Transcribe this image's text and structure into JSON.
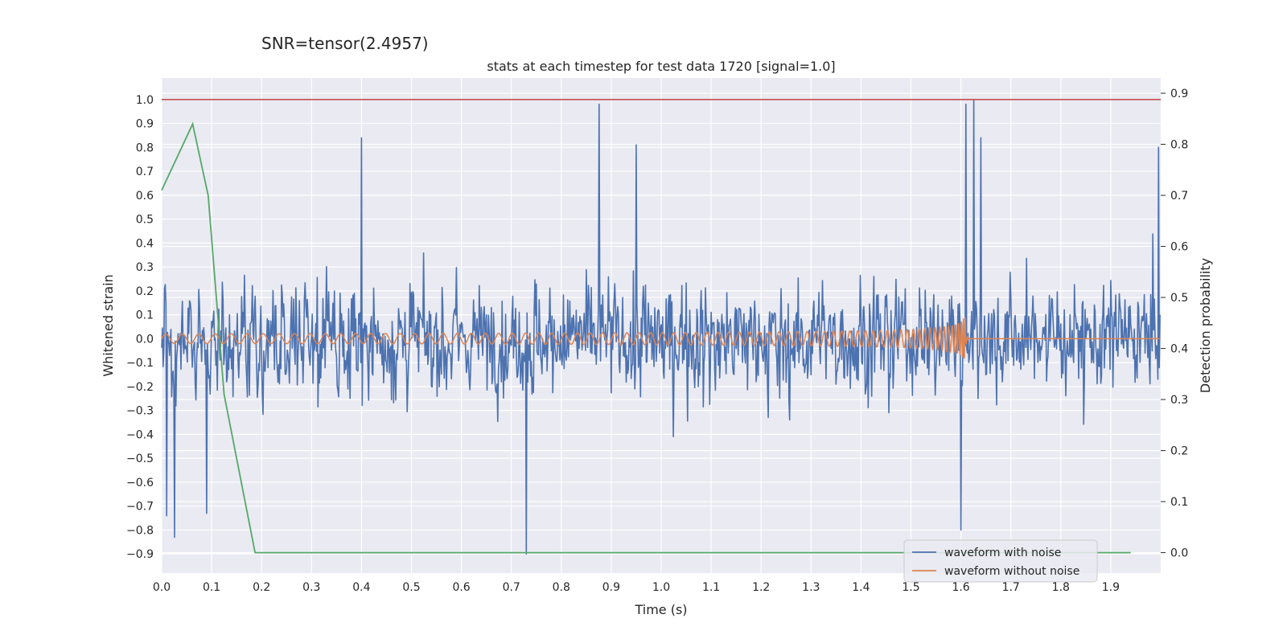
{
  "suptitle": "SNR=tensor(2.4957)",
  "chart_data": {
    "type": "line",
    "title": "stats at each timestep for test data 1720 [signal=1.0]",
    "xlabel": "Time (s)",
    "ylabel_left": "Whitened strain",
    "ylabel_right": "Detection probability",
    "xlim": [
      0.0,
      2.0
    ],
    "ylim_left": [
      -0.98,
      1.09
    ],
    "ylim_right": [
      -0.04,
      0.93
    ],
    "x_ticks": [
      "0.0",
      "0.1",
      "0.2",
      "0.3",
      "0.4",
      "0.5",
      "0.6",
      "0.7",
      "0.8",
      "0.9",
      "1.0",
      "1.1",
      "1.2",
      "1.3",
      "1.4",
      "1.5",
      "1.6",
      "1.7",
      "1.8",
      "1.9"
    ],
    "y_ticks_left": [
      "1.0",
      "0.9",
      "0.8",
      "0.7",
      "0.6",
      "0.5",
      "0.4",
      "0.3",
      "0.2",
      "0.1",
      "0.0",
      "−0.1",
      "−0.2",
      "−0.3",
      "−0.4",
      "−0.5",
      "−0.6",
      "−0.7",
      "−0.8",
      "−0.9"
    ],
    "y_ticks_right": [
      "0.9",
      "0.8",
      "0.7",
      "0.6",
      "0.5",
      "0.4",
      "0.3",
      "0.2",
      "0.1",
      "0.0"
    ],
    "colors": {
      "background": "#eaeaf2",
      "grid": "#ffffff",
      "noise": "#4c72b0",
      "clean": "#dd8452",
      "prob": "#55a868",
      "threshold": "#c44e52"
    },
    "series": [
      {
        "name": "waveform with noise",
        "description_only_in_legend": true,
        "x_range": [
          0.0,
          2.0
        ],
        "amplitude_range": [
          -0.9,
          1.0
        ],
        "spikes": [
          {
            "x": 0.01,
            "y": -0.74
          },
          {
            "x": 0.025,
            "y": -0.83
          },
          {
            "x": 0.09,
            "y": -0.73
          },
          {
            "x": 0.4,
            "y": 0.84
          },
          {
            "x": 0.73,
            "y": -0.9
          },
          {
            "x": 0.875,
            "y": 0.98
          },
          {
            "x": 0.95,
            "y": 0.81
          },
          {
            "x": 1.6,
            "y": -0.8
          },
          {
            "x": 1.61,
            "y": 0.98
          },
          {
            "x": 1.625,
            "y": 1.0
          },
          {
            "x": 1.64,
            "y": 0.84
          },
          {
            "x": 1.995,
            "y": 0.8
          }
        ]
      },
      {
        "name": "waveform without noise",
        "x_range": [
          0.0,
          2.0
        ],
        "merger_time": 1.61,
        "amplitude_start": 0.02,
        "amplitude_peak": 0.1
      },
      {
        "name": "detection probability",
        "x": [
          0.0,
          0.062,
          0.093,
          0.125,
          0.187,
          0.25,
          0.5,
          1.0,
          1.5,
          1.94
        ],
        "y": [
          0.71,
          0.84,
          0.7,
          0.31,
          0.0,
          0.0,
          0.0,
          0.0,
          0.0,
          0.0
        ]
      },
      {
        "name": "threshold",
        "y_left": 1.0
      }
    ],
    "legend": {
      "position": "lower-right",
      "entries": [
        "waveform with noise",
        "waveform without noise"
      ]
    }
  }
}
